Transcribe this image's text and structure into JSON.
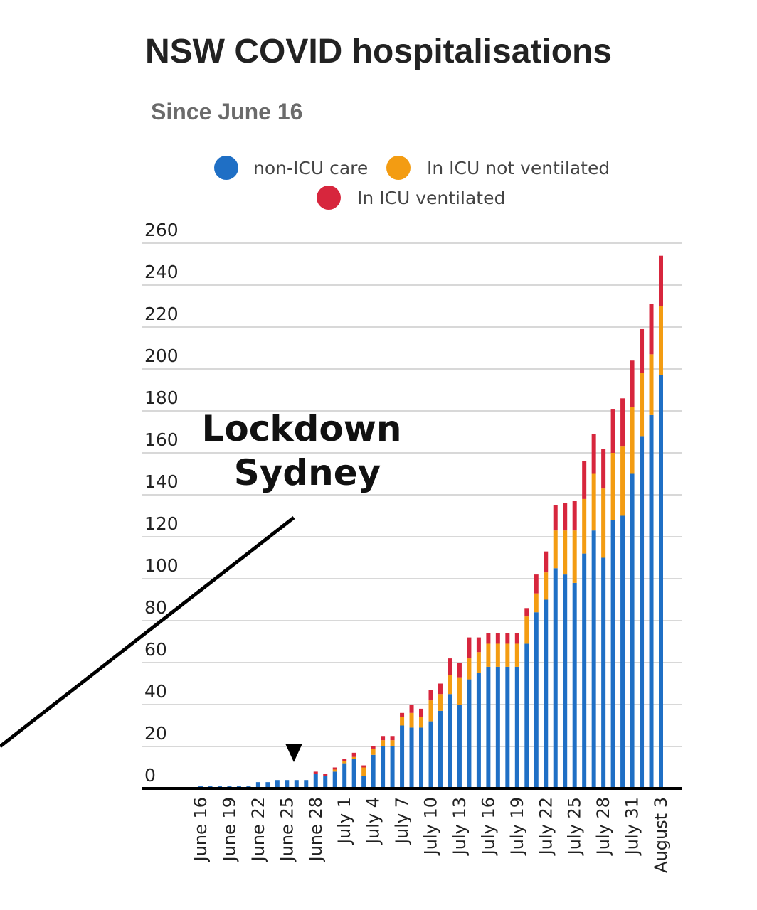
{
  "chart_data": {
    "type": "bar",
    "stacked": true,
    "title": "NSW COVID hospitalisations",
    "subtitle": "Since June 16",
    "legend": [
      {
        "name": "non-ICU care",
        "color": "#1f6fc5"
      },
      {
        "name": "In ICU not ventilated",
        "color": "#f39c12"
      },
      {
        "name": "In ICU ventilated",
        "color": "#d7263d"
      }
    ],
    "legend_placement": "top",
    "ylim": [
      0,
      260
    ],
    "yticks": [
      0,
      20,
      40,
      60,
      80,
      100,
      120,
      140,
      160,
      180,
      200,
      220,
      240,
      260
    ],
    "grid": true,
    "categories": [
      "June 16",
      "June 17",
      "June 18",
      "June 19",
      "June 20",
      "June 21",
      "June 22",
      "June 23",
      "June 24",
      "June 25",
      "June 26",
      "June 27",
      "June 28",
      "June 29",
      "June 30",
      "July 1",
      "July 2",
      "July 3",
      "July 4",
      "July 5",
      "July 6",
      "July 7",
      "July 8",
      "July 9",
      "July 10",
      "July 11",
      "July 12",
      "July 13",
      "July 14",
      "July 15",
      "July 16",
      "July 17",
      "July 18",
      "July 19",
      "July 20",
      "July 21",
      "July 22",
      "July 23",
      "July 24",
      "July 25",
      "July 26",
      "July 27",
      "July 28",
      "July 29",
      "July 30",
      "July 31",
      "August 1",
      "August 2",
      "August 3"
    ],
    "xtick_labels": [
      "June 16",
      "June 19",
      "June 22",
      "June 25",
      "June 28",
      "July 1",
      "July 4",
      "July 7",
      "July 10",
      "July 13",
      "July 16",
      "July 19",
      "July 22",
      "July 25",
      "July 28",
      "July 31",
      "August 3"
    ],
    "series": [
      {
        "name": "non-ICU care",
        "color": "#1f6fc5",
        "values": [
          1,
          1,
          1,
          1,
          1,
          1,
          3,
          3,
          4,
          4,
          4,
          4,
          7,
          6,
          8,
          12,
          14,
          6,
          16,
          20,
          20,
          30,
          29,
          29,
          32,
          37,
          45,
          40,
          52,
          55,
          58,
          58,
          58,
          58,
          69,
          84,
          90,
          105,
          102,
          98,
          112,
          123,
          110,
          128,
          130,
          150,
          168,
          178,
          197
        ]
      },
      {
        "name": "In ICU not ventilated",
        "color": "#f39c12",
        "values": [
          0,
          0,
          0,
          0,
          0,
          0,
          0,
          0,
          0,
          0,
          0,
          0,
          0,
          0,
          1,
          1,
          1,
          4,
          3,
          3,
          3,
          4,
          7,
          5,
          10,
          8,
          9,
          13,
          10,
          10,
          11,
          11,
          11,
          11,
          13,
          9,
          13,
          18,
          21,
          25,
          26,
          27,
          33,
          32,
          33,
          32,
          30,
          29,
          33
        ]
      },
      {
        "name": "In ICU ventilated",
        "color": "#d7263d",
        "values": [
          0,
          0,
          0,
          0,
          0,
          0,
          0,
          0,
          0,
          0,
          0,
          0,
          1,
          1,
          1,
          1,
          2,
          1,
          1,
          2,
          2,
          2,
          4,
          4,
          5,
          5,
          8,
          7,
          10,
          7,
          5,
          5,
          5,
          5,
          4,
          9,
          10,
          12,
          13,
          14,
          18,
          19,
          19,
          21,
          23,
          22,
          21,
          24,
          24
        ]
      }
    ]
  },
  "annotation": {
    "line1": "Lockdown",
    "line2": "Sydney",
    "target_category": "June 26"
  }
}
